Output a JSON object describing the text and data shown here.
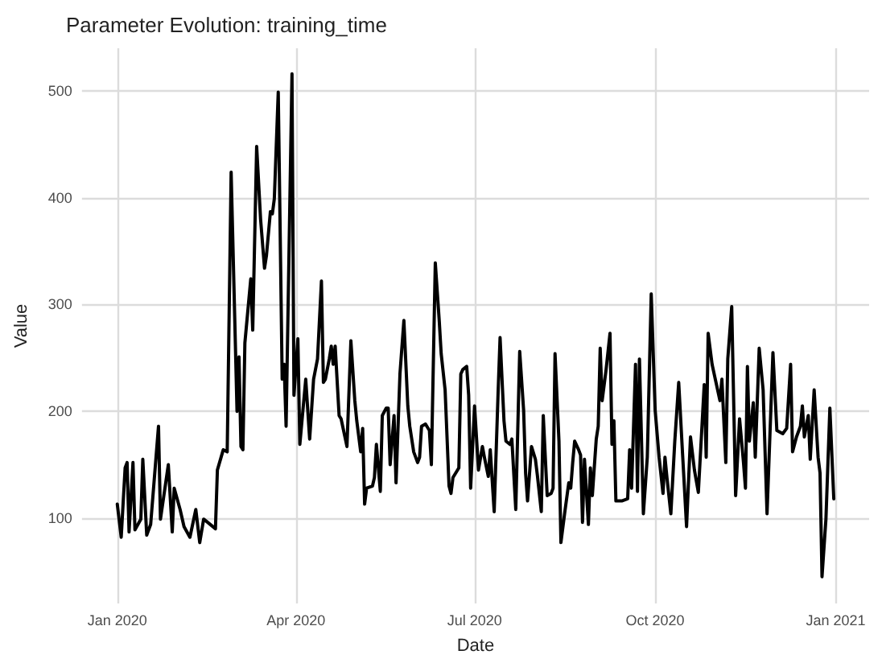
{
  "chart_data": {
    "type": "line",
    "title": "Parameter Evolution: training_time",
    "xlabel": "Date",
    "ylabel": "Value",
    "xlim": [
      "2019-12-14",
      "2021-01-18"
    ],
    "xticks": [
      {
        "value": "2020-01-01",
        "label": "Jan 2020"
      },
      {
        "value": "2020-04-01",
        "label": "Apr 2020"
      },
      {
        "value": "2020-07-01",
        "label": "Jul 2020"
      },
      {
        "value": "2020-10-01",
        "label": "Oct 2020"
      },
      {
        "value": "2021-01-01",
        "label": "Jan 2021"
      }
    ],
    "ylim": [
      20,
      540
    ],
    "yticks": [
      100,
      200,
      300,
      400,
      500
    ],
    "grid": true,
    "marker": "none",
    "line_style": "solid",
    "series": [
      {
        "color": "#000000",
        "x": [
          "2020-01-01",
          "2020-01-03",
          "2020-01-05",
          "2020-01-06",
          "2020-01-07",
          "2020-01-09",
          "2020-01-10",
          "2020-01-13",
          "2020-01-14",
          "2020-01-16",
          "2020-01-18",
          "2020-01-22",
          "2020-01-23",
          "2020-01-27",
          "2020-01-29",
          "2020-01-30",
          "2020-02-02",
          "2020-02-04",
          "2020-02-07",
          "2020-02-10",
          "2020-02-12",
          "2020-02-14",
          "2020-02-20",
          "2020-02-21",
          "2020-02-24",
          "2020-02-26",
          "2020-02-28",
          "2020-03-02",
          "2020-03-03",
          "2020-03-04",
          "2020-03-05",
          "2020-03-06",
          "2020-03-09",
          "2020-03-10",
          "2020-03-12",
          "2020-03-14",
          "2020-03-16",
          "2020-03-17",
          "2020-03-19",
          "2020-03-20",
          "2020-03-21",
          "2020-03-23",
          "2020-03-25",
          "2020-03-26",
          "2020-03-27",
          "2020-03-30",
          "2020-03-31",
          "2020-04-02",
          "2020-04-03",
          "2020-04-06",
          "2020-04-08",
          "2020-04-10",
          "2020-04-12",
          "2020-04-14",
          "2020-04-15",
          "2020-04-16",
          "2020-04-18",
          "2020-04-19",
          "2020-04-20",
          "2020-04-21",
          "2020-04-23",
          "2020-04-24",
          "2020-04-27",
          "2020-04-29",
          "2020-05-01",
          "2020-05-02",
          "2020-05-04",
          "2020-05-05",
          "2020-05-06",
          "2020-05-07",
          "2020-05-10",
          "2020-05-11",
          "2020-05-12",
          "2020-05-14",
          "2020-05-15",
          "2020-05-17",
          "2020-05-18",
          "2020-05-19",
          "2020-05-21",
          "2020-05-22",
          "2020-05-24",
          "2020-05-26",
          "2020-05-28",
          "2020-05-29",
          "2020-05-31",
          "2020-06-02",
          "2020-06-03",
          "2020-06-04",
          "2020-06-06",
          "2020-06-08",
          "2020-06-09",
          "2020-06-11",
          "2020-06-13",
          "2020-06-14",
          "2020-06-16",
          "2020-06-18",
          "2020-06-19",
          "2020-06-20",
          "2020-06-23",
          "2020-06-24",
          "2020-06-25",
          "2020-06-27",
          "2020-06-28",
          "2020-06-29",
          "2020-07-01",
          "2020-07-03",
          "2020-07-05",
          "2020-07-06",
          "2020-07-08",
          "2020-07-09",
          "2020-07-11",
          "2020-07-13",
          "2020-07-14",
          "2020-07-16",
          "2020-07-17",
          "2020-07-19",
          "2020-07-20",
          "2020-07-22",
          "2020-07-24",
          "2020-07-26",
          "2020-07-27",
          "2020-07-28",
          "2020-07-30",
          "2020-08-01",
          "2020-08-02",
          "2020-08-04",
          "2020-08-05",
          "2020-08-07",
          "2020-08-09",
          "2020-08-10",
          "2020-08-11",
          "2020-08-13",
          "2020-08-14",
          "2020-08-16",
          "2020-08-18",
          "2020-08-19",
          "2020-08-20",
          "2020-08-21",
          "2020-08-23",
          "2020-08-24",
          "2020-08-25",
          "2020-08-26",
          "2020-08-28",
          "2020-08-29",
          "2020-08-30",
          "2020-09-01",
          "2020-09-02",
          "2020-09-03",
          "2020-09-04",
          "2020-09-06",
          "2020-09-08",
          "2020-09-09",
          "2020-09-10",
          "2020-09-11",
          "2020-09-14",
          "2020-09-17",
          "2020-09-18",
          "2020-09-19",
          "2020-09-21",
          "2020-09-22",
          "2020-09-23",
          "2020-09-25",
          "2020-09-27",
          "2020-09-29",
          "2020-10-01",
          "2020-10-03",
          "2020-10-05",
          "2020-10-06",
          "2020-10-07",
          "2020-10-09",
          "2020-10-11",
          "2020-10-13",
          "2020-10-15",
          "2020-10-17",
          "2020-10-19",
          "2020-10-21",
          "2020-10-23",
          "2020-10-26",
          "2020-10-27",
          "2020-10-28",
          "2020-10-30",
          "2020-11-01",
          "2020-11-03",
          "2020-11-04",
          "2020-11-06",
          "2020-11-07",
          "2020-11-09",
          "2020-11-11",
          "2020-11-13",
          "2020-11-15",
          "2020-11-16",
          "2020-11-17",
          "2020-11-18",
          "2020-11-20",
          "2020-11-21",
          "2020-11-23",
          "2020-11-25",
          "2020-11-27",
          "2020-11-30",
          "2020-12-02",
          "2020-12-05",
          "2020-12-07",
          "2020-12-09",
          "2020-12-10",
          "2020-12-12",
          "2020-12-14",
          "2020-12-15",
          "2020-12-16",
          "2020-12-18",
          "2020-12-19",
          "2020-12-21",
          "2020-12-23",
          "2020-12-24",
          "2020-12-25",
          "2020-12-27",
          "2020-12-29",
          "2020-12-31"
        ],
        "values": [
          113,
          82,
          147,
          152,
          87,
          152,
          89,
          99,
          155,
          84,
          94,
          186,
          99,
          150,
          87,
          128,
          108,
          92,
          82,
          108,
          77,
          99,
          90,
          145,
          164,
          162,
          424,
          200,
          251,
          167,
          164,
          264,
          324,
          276,
          448,
          380,
          334,
          346,
          387,
          385,
          399,
          499,
          230,
          244,
          186,
          516,
          215,
          268,
          169,
          230,
          174,
          230,
          249,
          322,
          227,
          230,
          249,
          261,
          244,
          261,
          196,
          193,
          167,
          266,
          210,
          191,
          162,
          184,
          113,
          128,
          130,
          138,
          169,
          125,
          196,
          203,
          203,
          150,
          196,
          133,
          235,
          285,
          205,
          186,
          162,
          152,
          157,
          186,
          188,
          182,
          150,
          339,
          285,
          254,
          220,
          130,
          123,
          138,
          147,
          235,
          239,
          242,
          215,
          128,
          205,
          145,
          167,
          157,
          139,
          164,
          106,
          218,
          269,
          191,
          172,
          169,
          174,
          108,
          256,
          201,
          142,
          116,
          167,
          155,
          140,
          106,
          196,
          121,
          123,
          128,
          254,
          172,
          77,
          106,
          133,
          128,
          152,
          172,
          164,
          159,
          96,
          155,
          94,
          147,
          121,
          174,
          186,
          259,
          210,
          239,
          273,
          169,
          191,
          116,
          116,
          118,
          164,
          128,
          244,
          125,
          249,
          104,
          157,
          310,
          201,
          157,
          123,
          157,
          138,
          104,
          172,
          227,
          159,
          92,
          176,
          145,
          124,
          225,
          157,
          273,
          244,
          227,
          210,
          230,
          152,
          249,
          298,
          121,
          193,
          152,
          128,
          242,
          172,
          208,
          157,
          259,
          220,
          104,
          255,
          182,
          179,
          184,
          244,
          162,
          176,
          186,
          205,
          176,
          196,
          155,
          220,
          157,
          142,
          45,
          99,
          203,
          118
        ]
      }
    ]
  }
}
